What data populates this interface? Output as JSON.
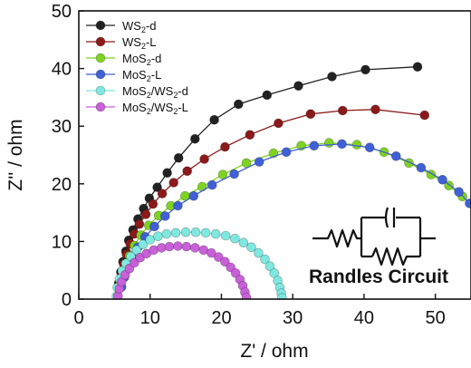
{
  "chart_data": {
    "type": "scatter",
    "xlabel": "Z' / ohm",
    "ylabel": "Z'' / ohm",
    "xlim": [
      0,
      55
    ],
    "ylim": [
      0,
      50
    ],
    "xticks": [
      0,
      10,
      20,
      30,
      40,
      50
    ],
    "yticks": [
      0,
      10,
      20,
      30,
      40,
      50
    ],
    "grid": false,
    "legend_placement": "top-left",
    "annotation": "Randles Circuit",
    "series": [
      {
        "name": "WS2-d",
        "legend_main": "WS",
        "legend_sub": "2",
        "legend_rest": "-d",
        "color": "#222222",
        "x": [
          5.6,
          5.9,
          6.2,
          6.6,
          7.0,
          7.6,
          8.3,
          9.1,
          9.9,
          11.0,
          12.4,
          14.0,
          16.3,
          19.0,
          22.4,
          26.4,
          30.8,
          35.5,
          40.2,
          47.5
        ],
        "y": [
          2.8,
          4.7,
          6.5,
          8.3,
          10.2,
          12.0,
          13.9,
          15.7,
          17.5,
          19.4,
          21.9,
          24.5,
          27.8,
          31.1,
          33.8,
          35.4,
          37.0,
          38.6,
          39.8,
          40.3
        ]
      },
      {
        "name": "WS2-L",
        "legend_main": "WS",
        "legend_sub": "2",
        "legend_rest": "-L",
        "color": "#8b1a1a",
        "x": [
          5.7,
          6.0,
          6.3,
          6.7,
          7.2,
          7.8,
          8.5,
          9.4,
          10.4,
          11.7,
          13.3,
          15.2,
          17.6,
          20.5,
          24.0,
          28.0,
          32.5,
          37.0,
          41.6,
          48.5
        ],
        "y": [
          2.6,
          4.4,
          6.1,
          7.8,
          9.6,
          11.3,
          13.0,
          14.7,
          16.5,
          18.3,
          20.2,
          22.2,
          24.3,
          26.4,
          28.5,
          30.5,
          32.1,
          32.7,
          32.9,
          31.9
        ]
      },
      {
        "name": "MoS2-d",
        "legend_main": "MoS",
        "legend_sub": "2",
        "legend_rest": "-d",
        "color": "#7ed321",
        "x": [
          5.9,
          6.2,
          6.6,
          7.1,
          7.8,
          8.7,
          9.8,
          11.2,
          12.9,
          14.9,
          17.3,
          20.2,
          23.5,
          27.3,
          31.2,
          35.1,
          39.0,
          42.8,
          46.3,
          49.4,
          51.9,
          53.8
        ],
        "y": [
          2.3,
          4.0,
          5.7,
          7.5,
          9.3,
          11.1,
          12.8,
          14.5,
          16.2,
          17.9,
          19.5,
          21.6,
          23.6,
          25.3,
          26.6,
          27.1,
          26.8,
          25.5,
          23.6,
          21.6,
          19.7,
          17.8
        ]
      },
      {
        "name": "MoS2-L",
        "legend_main": "MoS",
        "legend_sub": "2",
        "legend_rest": "-L",
        "color": "#4060d8",
        "x": [
          6.0,
          6.4,
          6.9,
          7.5,
          8.3,
          9.3,
          10.6,
          12.1,
          13.9,
          16.1,
          18.7,
          21.8,
          25.3,
          29.1,
          33.0,
          36.9,
          40.8,
          44.5,
          48.0,
          51.0,
          53.3,
          54.8
        ],
        "y": [
          2.1,
          3.8,
          5.5,
          7.2,
          9.0,
          10.8,
          12.6,
          14.4,
          16.2,
          17.9,
          19.8,
          21.7,
          23.8,
          25.5,
          26.6,
          26.9,
          26.3,
          24.8,
          22.8,
          20.7,
          18.6,
          16.6
        ]
      },
      {
        "name": "MoS2/WS2-d",
        "legend_main": "MoS",
        "legend_sub": "2",
        "legend_rest": "/WS",
        "legend_sub2": "2",
        "legend_rest2": "-d",
        "color": "#7fe8e0",
        "x": [
          5.3,
          5.4,
          5.7,
          6.1,
          6.6,
          7.3,
          8.1,
          9.0,
          10.0,
          11.1,
          12.3,
          13.6,
          15.0,
          16.4,
          17.8,
          19.2,
          20.6,
          21.9,
          23.1,
          24.2,
          25.2,
          26.1,
          26.8,
          27.4,
          27.9,
          28.2,
          28.4,
          28.5
        ],
        "y": [
          0.5,
          2.0,
          3.5,
          4.9,
          6.2,
          7.4,
          8.5,
          9.5,
          10.3,
          10.9,
          11.3,
          11.5,
          11.6,
          11.6,
          11.5,
          11.3,
          11.0,
          10.5,
          9.8,
          9.0,
          8.0,
          6.9,
          5.7,
          4.5,
          3.2,
          2.0,
          1.0,
          0.2
        ]
      },
      {
        "name": "MoS2/WS2-L",
        "legend_main": "MoS",
        "legend_sub": "2",
        "legend_rest": "/WS",
        "legend_sub2": "2",
        "legend_rest2": "-L",
        "color": "#c860d8",
        "x": [
          5.5,
          5.7,
          6.0,
          6.5,
          7.1,
          7.8,
          8.6,
          9.5,
          10.5,
          11.6,
          12.7,
          13.9,
          15.1,
          16.3,
          17.5,
          18.6,
          19.6,
          20.5,
          21.3,
          22.0,
          22.6,
          23.0,
          23.3,
          23.5
        ],
        "y": [
          0.5,
          1.8,
          3.0,
          4.2,
          5.3,
          6.3,
          7.2,
          7.9,
          8.5,
          8.9,
          9.1,
          9.2,
          9.1,
          8.9,
          8.5,
          8.0,
          7.3,
          6.5,
          5.5,
          4.5,
          3.4,
          2.3,
          1.2,
          0.3
        ]
      }
    ]
  }
}
